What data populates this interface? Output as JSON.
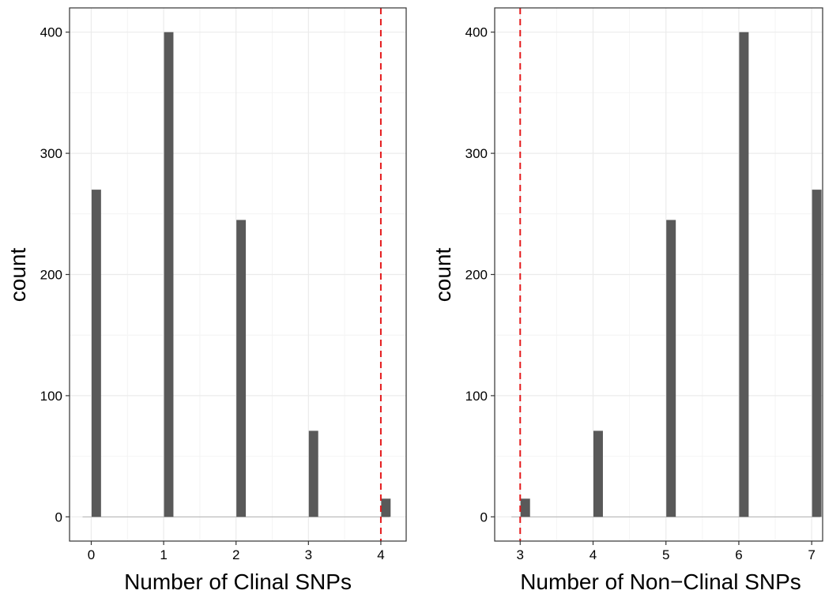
{
  "colors": {
    "bar": "#595959",
    "grid_major": "#ebebeb",
    "grid_minor": "#f4f4f4",
    "frame": "#333333",
    "threshold_line": "#e41a1c",
    "baseline": "#b3b3b3"
  },
  "chart_data": [
    {
      "type": "bar",
      "title": "",
      "xlabel": "Number of Clinal SNPs",
      "ylabel": "count",
      "x": [
        0,
        1,
        2,
        3,
        4
      ],
      "values": [
        270,
        400,
        245,
        71,
        15
      ],
      "x_ticks": [
        "0",
        "1",
        "2",
        "3",
        "4"
      ],
      "y_ticks": [
        "0",
        "100",
        "200",
        "300",
        "400"
      ],
      "xlim": [
        -0.3,
        4.35
      ],
      "ylim": [
        -20,
        420
      ],
      "vline": {
        "x": 4,
        "style": "dashed"
      },
      "grid": true,
      "legend": "none"
    },
    {
      "type": "bar",
      "title": "",
      "xlabel": "Number of Non−Clinal SNPs",
      "ylabel": "count",
      "x": [
        3,
        4,
        5,
        6,
        7
      ],
      "values": [
        15,
        71,
        245,
        400,
        270
      ],
      "x_ticks": [
        "3",
        "4",
        "5",
        "6",
        "7"
      ],
      "y_ticks": [
        "0",
        "100",
        "200",
        "300",
        "400"
      ],
      "xlim": [
        2.65,
        7.15
      ],
      "ylim": [
        -20,
        420
      ],
      "vline": {
        "x": 3,
        "style": "dashed"
      },
      "grid": true,
      "legend": "none"
    }
  ]
}
